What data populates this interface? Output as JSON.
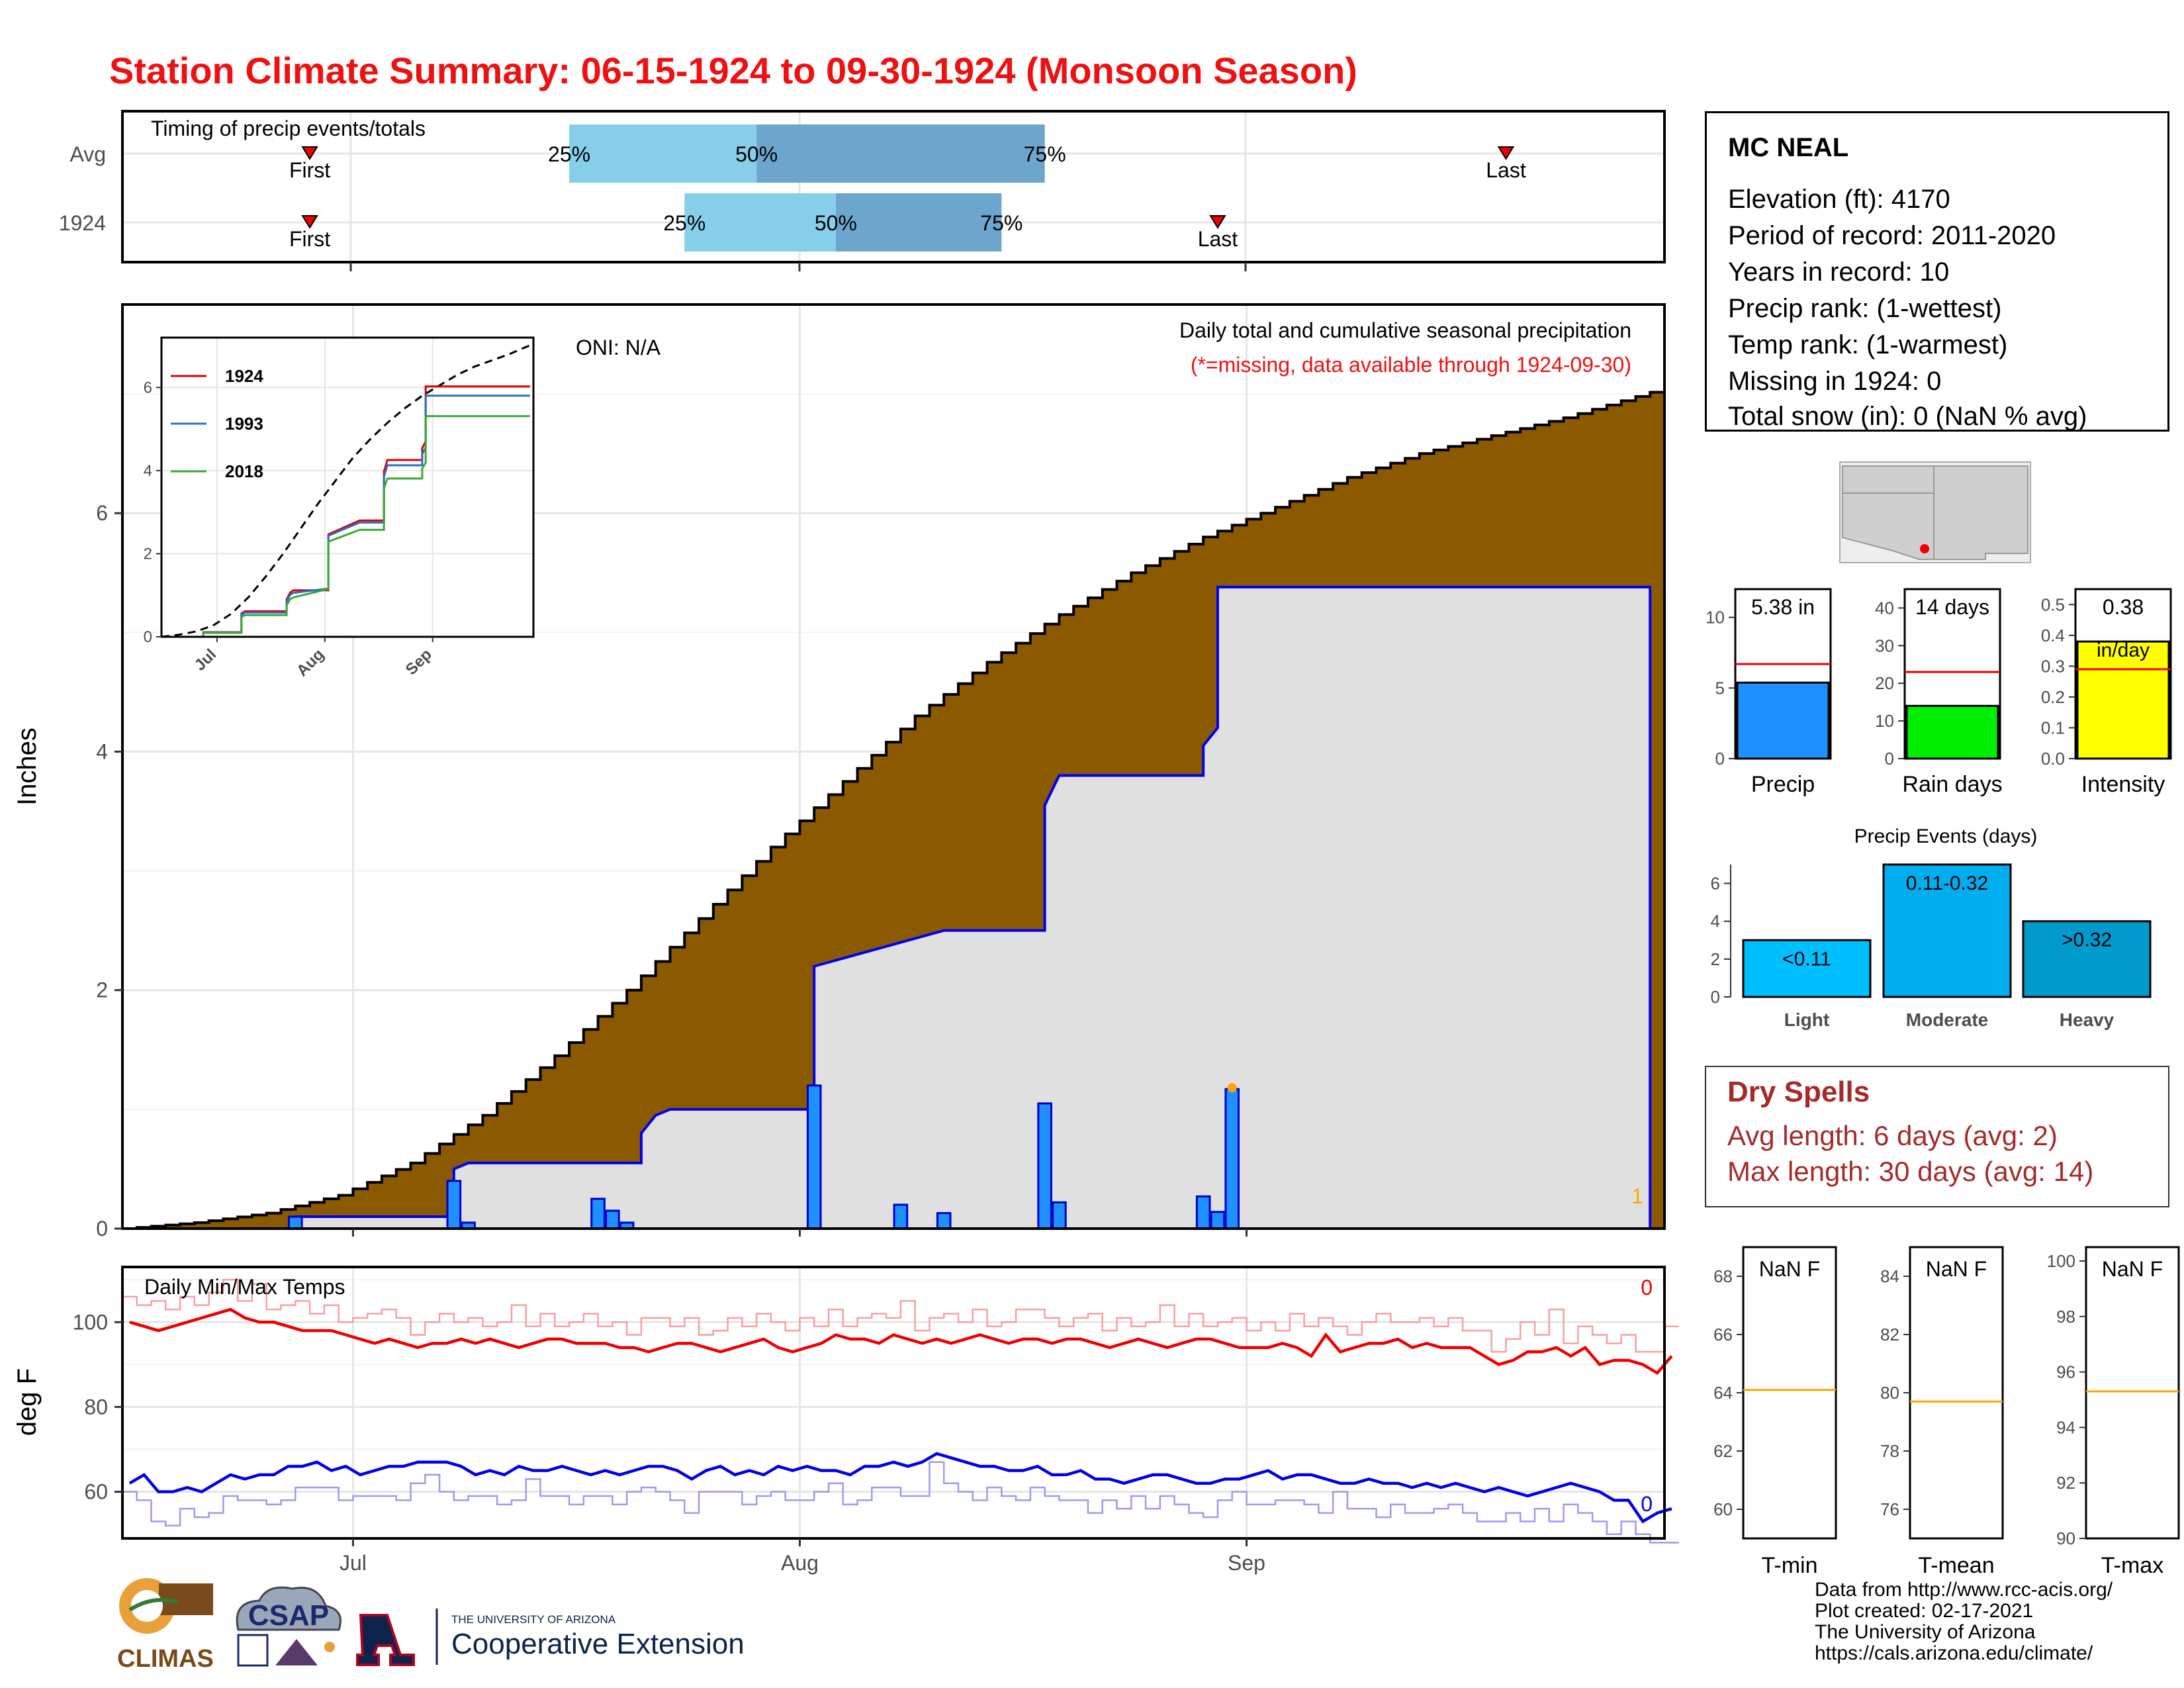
{
  "title": "Station Climate Summary: 06-15-1924 to 09-30-1924 (Monsoon Season)",
  "colors": {
    "title": "#ee1111",
    "cumulative_fill": "#8b5a00",
    "current_fill": "#e0e0e0",
    "current_line": "#0000ee",
    "bar_fill": "#1e90ff",
    "quartile_light": "#87ceeb",
    "quartile_dark": "#6ca6cd",
    "tmax": "#ee0000",
    "tmin": "#0000ee",
    "dry_spells": "#a52a2a",
    "temp_avg_line": "#ffa500"
  },
  "timing_panel": {
    "label": "Timing of precip events/totals",
    "rows": [
      {
        "name": "Avg",
        "first_label": "First",
        "last_label": "Last",
        "q25_label": "25%",
        "q50_label": "50%",
        "q75_label": "75%",
        "first_day": 13,
        "last_day": 96,
        "q25_day": 31,
        "q50_day": 44,
        "q75_day": 64
      },
      {
        "name": "1924",
        "first_label": "First",
        "last_label": "Last",
        "q25_label": "25%",
        "q50_label": "50%",
        "q75_label": "75%",
        "first_day": 13,
        "last_day": 76,
        "q25_day": 39,
        "q50_day": 49.5,
        "q75_day": 61
      }
    ]
  },
  "precip_panel": {
    "oni": "ONI: N/A",
    "subtitle": "Daily total and cumulative seasonal precipitation",
    "missing_note": "(*=missing, data available through 1924-09-30)",
    "ylabel": "Inches",
    "missing_count": "1",
    "yticks": [
      "0",
      "2",
      "4",
      "6"
    ]
  },
  "inset": {
    "yticks": [
      "0",
      "2",
      "4",
      "6"
    ],
    "xticks": [
      "Jul",
      "Aug",
      "Sep"
    ],
    "legend": [
      {
        "label": "1924",
        "color": "#dd0000"
      },
      {
        "label": "1993",
        "color": "#2a6fc4"
      },
      {
        "label": "2018",
        "color": "#3aaa35"
      }
    ]
  },
  "temp_panel": {
    "label": "Daily Min/Max Temps",
    "ylabel": "deg F",
    "max_missing": "0",
    "min_missing": "0",
    "yticks": [
      "60",
      "80",
      "100"
    ],
    "xticks": [
      "Jul",
      "Aug",
      "Sep"
    ]
  },
  "station": {
    "name": "MC NEAL",
    "elevation": "Elevation (ft): 4170",
    "period": "Period of record: 2011-2020",
    "years": "Years in record: 10",
    "precip_rank": "Precip rank:  (1-wettest)",
    "temp_rank": "Temp rank:  (1-warmest)",
    "missing": "Missing in 1924: 0",
    "snow": "Total snow (in): 0 (NaN % avg)"
  },
  "summary_bars": [
    {
      "label": "Precip",
      "value_label": "5.38 in",
      "value": 5.38,
      "avg": 6.7,
      "ymax": 12,
      "yticks": [
        "0",
        "5",
        "10"
      ],
      "tick_vals": [
        0,
        5,
        10
      ],
      "color": "#1e90ff"
    },
    {
      "label": "Rain days",
      "value_label": "14 days",
      "value": 14,
      "avg": 23,
      "ymax": 45,
      "yticks": [
        "0",
        "10",
        "20",
        "30",
        "40"
      ],
      "tick_vals": [
        0,
        10,
        20,
        30,
        40
      ],
      "color": "#00ee00"
    },
    {
      "label": "Intensity",
      "value_label": "0.38",
      "unit_label": "in/day",
      "value": 0.38,
      "avg": 0.29,
      "ymax": 0.55,
      "yticks": [
        "0.0",
        "0.1",
        "0.2",
        "0.3",
        "0.4",
        "0.5"
      ],
      "tick_vals": [
        0,
        0.1,
        0.2,
        0.3,
        0.4,
        0.5
      ],
      "color": "#ffff00"
    }
  ],
  "precip_events": {
    "title": "Precip Events (days)",
    "yticks": [
      "0",
      "2",
      "4",
      "6"
    ],
    "bars": [
      {
        "label": "Light",
        "range": "<0.11",
        "value": 3,
        "color": "#00bfff"
      },
      {
        "label": "Moderate",
        "range": "0.11-0.32",
        "value": 7,
        "color": "#00aeef"
      },
      {
        "label": "Heavy",
        "range": ">0.32",
        "value": 4,
        "color": "#009acd"
      }
    ]
  },
  "dry_spells": {
    "title": "Dry Spells",
    "avg": "Avg length: 6 days (avg: 2)",
    "max": "Max length: 30 days (avg: 14)"
  },
  "temp_boxes": [
    {
      "label": "T-min",
      "value_label": "NaN F",
      "avg": 64.1,
      "ymin": 59,
      "ymax": 69,
      "yticks": [
        "60",
        "62",
        "64",
        "66",
        "68"
      ],
      "tick_vals": [
        60,
        62,
        64,
        66,
        68
      ]
    },
    {
      "label": "T-mean",
      "value_label": "NaN F",
      "avg": 79.7,
      "ymin": 75,
      "ymax": 85,
      "yticks": [
        "76",
        "78",
        "80",
        "82",
        "84"
      ],
      "tick_vals": [
        76,
        78,
        80,
        82,
        84
      ]
    },
    {
      "label": "T-max",
      "value_label": "NaN F",
      "avg": 95.3,
      "ymin": 90,
      "ymax": 100.5,
      "yticks": [
        "90",
        "92",
        "94",
        "96",
        "98",
        "100"
      ],
      "tick_vals": [
        90,
        92,
        94,
        96,
        98,
        100
      ]
    }
  ],
  "footer": {
    "line1": "Data from http://www.rcc-acis.org/",
    "line2": "Plot created: 02-17-2021",
    "line3": "The University of Arizona",
    "line4": "https://cals.arizona.edu/climate/"
  },
  "logos": {
    "climas": "CLIMAS",
    "csap": "CSAP",
    "ua_small": "THE UNIVERSITY OF ARIZONA",
    "ua_big": "Cooperative Extension"
  },
  "chart_data": [
    {
      "type": "area",
      "title": "Daily total and cumulative seasonal precipitation",
      "xlabel": "",
      "ylabel": "Inches",
      "x_range": [
        "1924-06-15",
        "1924-09-30"
      ],
      "xticks": [
        "Jul",
        "Aug",
        "Sep"
      ],
      "ylim": [
        0,
        7.75
      ],
      "series": [
        {
          "name": "Average cumulative",
          "points": [
            [
              0,
              0
            ],
            [
              5,
              0.05
            ],
            [
              10,
              0.13
            ],
            [
              15,
              0.28
            ],
            [
              20,
              0.55
            ],
            [
              25,
              0.95
            ],
            [
              30,
              1.45
            ],
            [
              35,
              2.0
            ],
            [
              40,
              2.6
            ],
            [
              45,
              3.2
            ],
            [
              50,
              3.75
            ],
            [
              55,
              4.3
            ],
            [
              60,
              4.75
            ],
            [
              65,
              5.15
            ],
            [
              70,
              5.5
            ],
            [
              75,
              5.8
            ],
            [
              80,
              6.05
            ],
            [
              85,
              6.3
            ],
            [
              90,
              6.5
            ],
            [
              95,
              6.65
            ],
            [
              100,
              6.8
            ],
            [
              107,
              7.05
            ]
          ]
        },
        {
          "name": "1924 cumulative",
          "points": [
            [
              0,
              0
            ],
            [
              12,
              0
            ],
            [
              12,
              0.1
            ],
            [
              23,
              0.1
            ],
            [
              23,
              0.5
            ],
            [
              24,
              0.55
            ],
            [
              36,
              0.55
            ],
            [
              36,
              0.8
            ],
            [
              37,
              0.95
            ],
            [
              38,
              1.0
            ],
            [
              48,
              1.0
            ],
            [
              48,
              2.2
            ],
            [
              54,
              2.4
            ],
            [
              57,
              2.5
            ],
            [
              64,
              2.5
            ],
            [
              64,
              3.55
            ],
            [
              65,
              3.8
            ],
            [
              75,
              3.8
            ],
            [
              75,
              4.05
            ],
            [
              76,
              4.2
            ],
            [
              76,
              5.38
            ],
            [
              106,
              5.38
            ]
          ]
        }
      ],
      "daily_bars": [
        [
          12,
          0.1
        ],
        [
          23,
          0.4
        ],
        [
          24,
          0.05
        ],
        [
          33,
          0.25
        ],
        [
          34,
          0.15
        ],
        [
          35,
          0.05
        ],
        [
          48,
          1.2
        ],
        [
          54,
          0.2
        ],
        [
          57,
          0.13
        ],
        [
          64,
          1.05
        ],
        [
          65,
          0.22
        ],
        [
          75,
          0.27
        ],
        [
          76,
          0.14
        ],
        [
          77,
          1.17
        ]
      ],
      "missing_days": [
        77
      ]
    },
    {
      "type": "line",
      "title": "Daily Min/Max Temps",
      "ylabel": "deg F",
      "ylim": [
        49,
        113
      ],
      "xticks": [
        "Jul",
        "Aug",
        "Sep"
      ],
      "series": [
        {
          "name": "Tmax",
          "values": [
            100,
            99,
            98,
            99,
            100,
            101,
            102,
            103,
            101,
            100,
            100,
            99,
            98,
            98,
            98,
            97,
            96,
            95,
            96,
            95,
            94,
            95,
            95,
            96,
            95,
            96,
            95,
            94,
            95,
            96,
            96,
            95,
            95,
            95,
            94,
            94,
            93,
            94,
            95,
            95,
            94,
            93,
            94,
            95,
            96,
            94,
            93,
            94,
            95,
            97,
            96,
            96,
            95,
            97,
            96,
            95,
            96,
            95,
            96,
            97,
            96,
            95,
            96,
            96,
            95,
            96,
            96,
            95,
            94,
            95,
            96,
            95,
            94,
            95,
            96,
            96,
            95,
            94,
            94,
            94,
            95,
            94,
            92,
            97,
            93,
            94,
            95,
            95,
            96,
            94,
            95,
            94,
            94,
            94,
            92,
            90,
            91,
            93,
            93,
            94,
            92,
            94,
            90,
            91,
            91,
            90,
            88,
            92
          ]
        },
        {
          "name": "Tmin",
          "values": [
            62,
            64,
            60,
            60,
            61,
            60,
            62,
            64,
            63,
            64,
            64,
            66,
            66,
            67,
            65,
            66,
            64,
            65,
            66,
            66,
            67,
            67,
            67,
            66,
            64,
            65,
            64,
            66,
            65,
            65,
            66,
            65,
            64,
            65,
            64,
            65,
            66,
            66,
            65,
            63,
            65,
            66,
            64,
            65,
            64,
            66,
            65,
            66,
            65,
            65,
            64,
            66,
            66,
            67,
            66,
            67,
            69,
            68,
            67,
            66,
            66,
            65,
            65,
            66,
            64,
            64,
            65,
            63,
            63,
            62,
            63,
            64,
            64,
            63,
            62,
            62,
            63,
            63,
            64,
            65,
            63,
            64,
            64,
            63,
            62,
            62,
            63,
            62,
            62,
            61,
            62,
            61,
            62,
            61,
            60,
            61,
            60,
            59,
            60,
            61,
            62,
            61,
            60,
            58,
            58,
            53,
            55,
            56
          ]
        }
      ]
    },
    {
      "type": "bar",
      "title": "",
      "categories": [
        "Precip",
        "Rain days",
        "Intensity"
      ],
      "values": [
        5.38,
        14,
        0.38
      ]
    },
    {
      "type": "bar",
      "title": "Precip Events (days)",
      "categories": [
        "Light",
        "Moderate",
        "Heavy"
      ],
      "values": [
        3,
        7,
        4
      ],
      "ylim": [
        0,
        7
      ]
    }
  ]
}
